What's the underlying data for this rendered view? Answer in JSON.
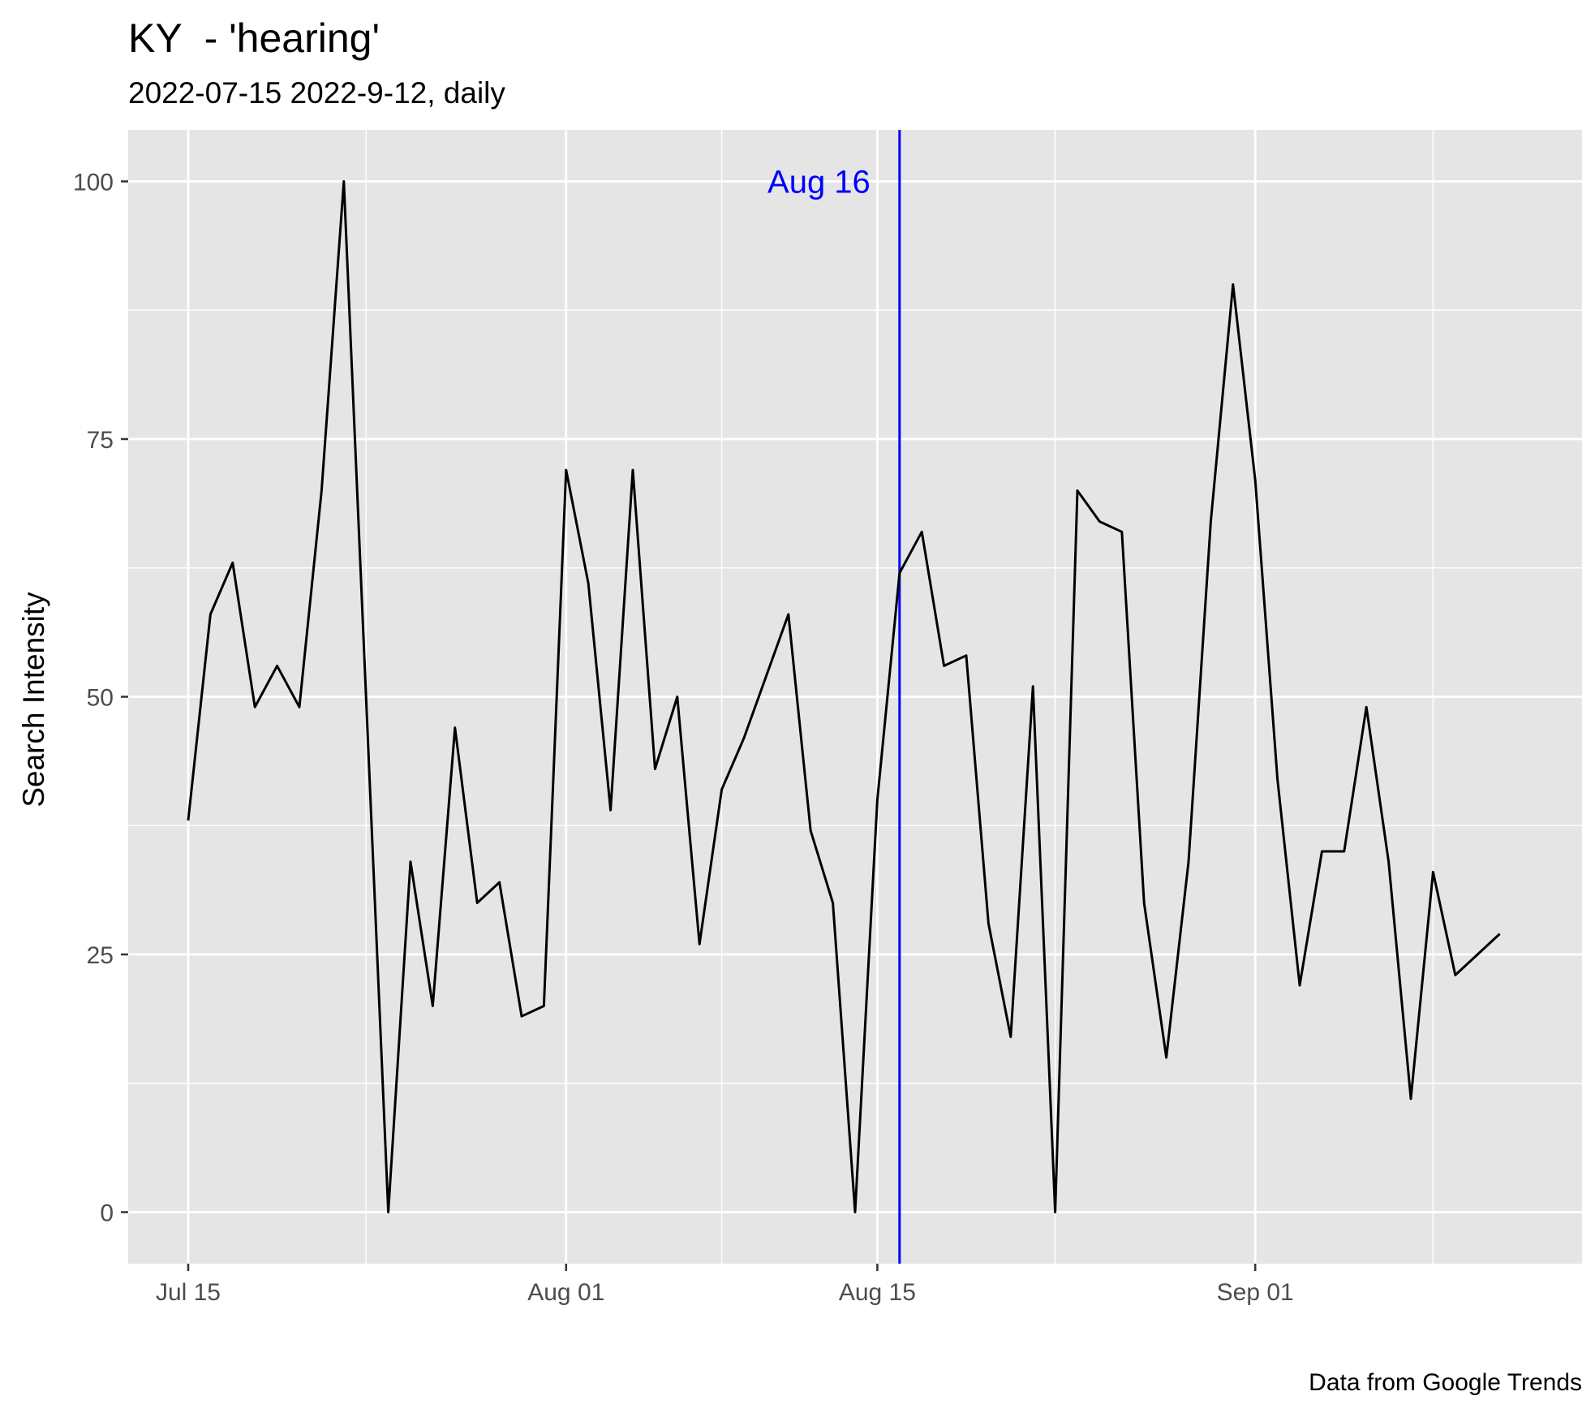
{
  "chart_data": {
    "type": "line",
    "title": "KY  - 'hearing'",
    "subtitle": "2022-07-15 2022-9-12, daily",
    "xlabel": "",
    "ylabel": "Search Intensity",
    "caption": "Data from Google Trends",
    "x_start": "2022-07-15",
    "x_end": "2022-09-13",
    "ylim": [
      -5,
      105
    ],
    "y_ticks": [
      0,
      25,
      50,
      75,
      100
    ],
    "x_ticks": [
      {
        "date": "2022-07-15",
        "label": "Jul 15"
      },
      {
        "date": "2022-08-01",
        "label": "Aug 01"
      },
      {
        "date": "2022-08-15",
        "label": "Aug 15"
      },
      {
        "date": "2022-09-01",
        "label": "Sep 01"
      }
    ],
    "x_minor_dates": [
      "2022-07-23",
      "2022-08-08",
      "2022-08-23",
      "2022-09-09"
    ],
    "y_minor_ticks": [
      12.5,
      37.5,
      62.5,
      87.5
    ],
    "grid": true,
    "series": [
      {
        "color": "#000000",
        "values": [
          38,
          58,
          63,
          49,
          53,
          49,
          70,
          100,
          50,
          0,
          34,
          20,
          47,
          30,
          32,
          19,
          20,
          72,
          61,
          39,
          72,
          43,
          50,
          26,
          41,
          46,
          52,
          58,
          37,
          30,
          0,
          40,
          62,
          66,
          53,
          54,
          28,
          17,
          51,
          0,
          70,
          67,
          66,
          30,
          15,
          34,
          67,
          90,
          71,
          42,
          22,
          35,
          35,
          49,
          34,
          11,
          33,
          23,
          25,
          27
        ]
      }
    ],
    "annotations": [
      {
        "date": "2022-08-16",
        "label": "Aug 16",
        "color": "#0000ff"
      }
    ],
    "colors": {
      "panel_background": "#e5e5e5",
      "grid": "#ffffff",
      "line": "#000000",
      "annotation": "#0000ff"
    }
  }
}
